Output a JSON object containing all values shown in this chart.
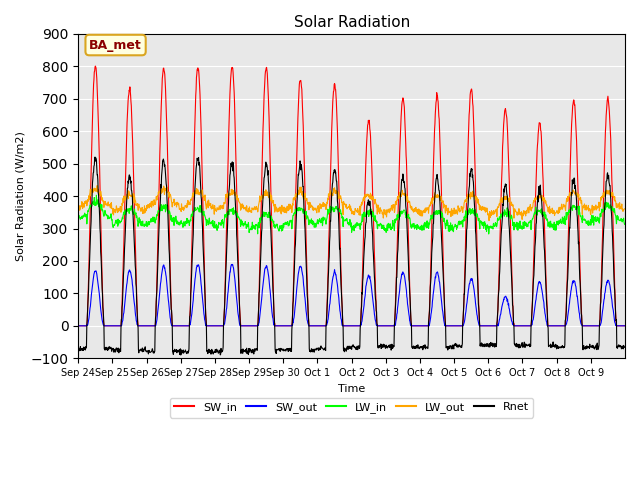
{
  "title": "Solar Radiation",
  "ylabel": "Solar Radiation (W/m2)",
  "xlabel": "Time",
  "ylim": [
    -100,
    900
  ],
  "yticks": [
    -100,
    0,
    100,
    200,
    300,
    400,
    500,
    600,
    700,
    800,
    900
  ],
  "legend_labels": [
    "SW_in",
    "SW_out",
    "LW_in",
    "LW_out",
    "Rnet"
  ],
  "legend_colors": [
    "red",
    "blue",
    "lime",
    "orange",
    "black"
  ],
  "annotation_text": "BA_met",
  "annotation_color": "darkred",
  "annotation_bg": "lightyellow",
  "bg_color": "#e8e8e8",
  "n_days": 16,
  "dt": 0.25,
  "SW_in_peaks": [
    800,
    730,
    795,
    800,
    800,
    795,
    760,
    745,
    630,
    700,
    710,
    730,
    670,
    625,
    695,
    700
  ],
  "SW_out_peaks": [
    170,
    170,
    185,
    190,
    190,
    185,
    185,
    165,
    155,
    165,
    165,
    145,
    90,
    135,
    140,
    140
  ],
  "LW_in_day": [
    380,
    360,
    365,
    360,
    355,
    345,
    360,
    365,
    350,
    350,
    350,
    355,
    350,
    355,
    365,
    370
  ],
  "LW_in_night": [
    330,
    310,
    315,
    310,
    305,
    295,
    310,
    315,
    300,
    300,
    300,
    305,
    300,
    305,
    315,
    320
  ],
  "LW_out_day": [
    420,
    405,
    420,
    415,
    410,
    405,
    410,
    415,
    400,
    405,
    400,
    405,
    395,
    400,
    410,
    413
  ],
  "LW_out_night": [
    365,
    350,
    365,
    360,
    355,
    350,
    355,
    360,
    345,
    350,
    345,
    350,
    340,
    345,
    355,
    358
  ],
  "Rnet_peaks": [
    515,
    460,
    510,
    515,
    505,
    500,
    500,
    480,
    385,
    460,
    455,
    480,
    430,
    415,
    455,
    460
  ],
  "Rnet_night": [
    -70,
    -75,
    -80,
    -80,
    -78,
    -75,
    -75,
    -70,
    -65,
    -65,
    -65,
    -60,
    -60,
    -60,
    -65,
    -65
  ],
  "tick_labels": [
    "Sep 24",
    "Sep 25",
    "Sep 26",
    "Sep 27",
    "Sep 28",
    "Sep 29",
    "Sep 30",
    "Oct 1",
    "Oct 2",
    "Oct 3",
    "Oct 4",
    "Oct 5",
    "Oct 6",
    "Oct 7",
    "Oct 8",
    "Oct 9"
  ]
}
